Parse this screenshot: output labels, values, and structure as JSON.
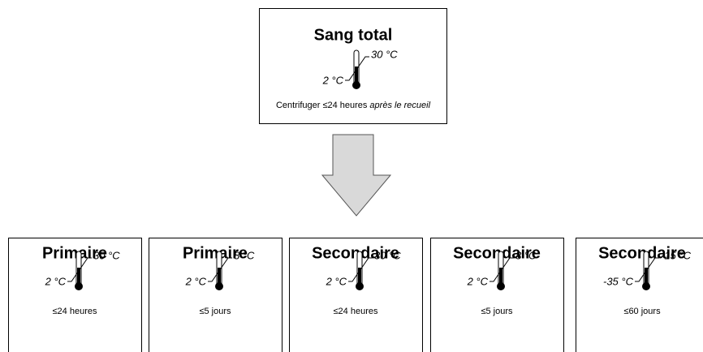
{
  "top": {
    "title": "Sang total",
    "high": "30 °C",
    "low": "2 °C",
    "caption": "Centrifuger ≤24 heures",
    "caption_italic": "après le recueil"
  },
  "boxes": [
    {
      "title": "Primaire",
      "high": "30 °C",
      "low": "2 °C",
      "caption": "≤24 heures"
    },
    {
      "title": "Primaire",
      "high": "8 °C",
      "low": "2 °C",
      "caption": "≤5 jours"
    },
    {
      "title": "Secondaire",
      "high": "30 °C",
      "low": "2 °C",
      "caption": "≤24 heures"
    },
    {
      "title": "Secondaire",
      "high": "8 °C",
      "low": "2 °C",
      "caption": "≤5 jours"
    },
    {
      "title": "Secondaire",
      "high": "-15 °C",
      "low": "-35 °C",
      "caption": "≤60 jours"
    }
  ]
}
